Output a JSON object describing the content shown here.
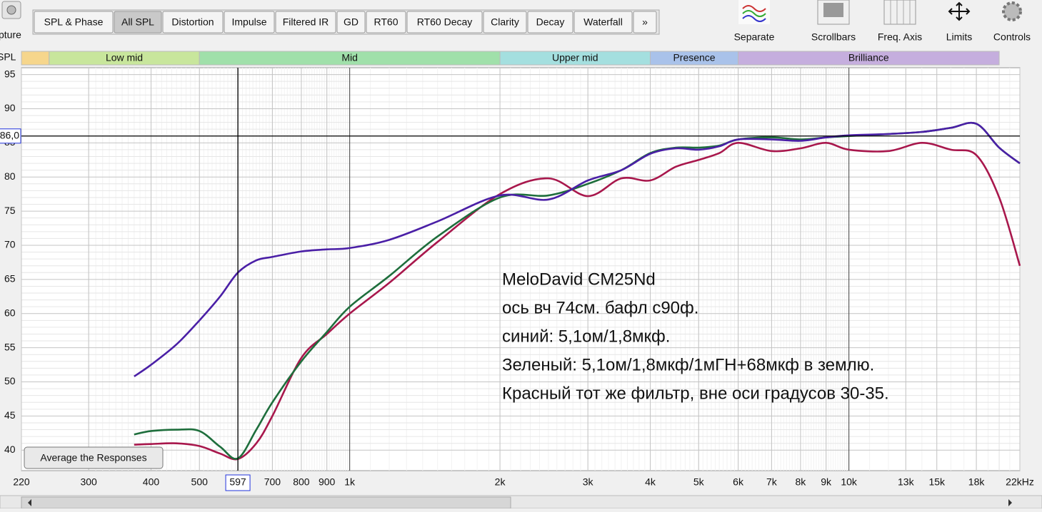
{
  "toolbar": {
    "capture_label": "pture",
    "tabs": [
      "SPL & Phase",
      "All SPL",
      "Distortion",
      "Impulse",
      "Filtered IR",
      "GD",
      "RT60",
      "RT60 Decay",
      "Clarity",
      "Decay",
      "Waterfall",
      "»"
    ],
    "active_tab": "All SPL",
    "tools": [
      "Separate",
      "Scrollbars",
      "Freq. Axis",
      "Limits",
      "Controls"
    ]
  },
  "button": "Average the Responses",
  "chart_data": {
    "type": "line",
    "y_label": "SPL",
    "x_log": true,
    "grid": true,
    "xlim": [
      220,
      22000
    ],
    "ylim": [
      37,
      96
    ],
    "xticks": [
      220,
      300,
      400,
      500,
      700,
      800,
      900,
      {
        "value": 1000,
        "label": "1k"
      },
      {
        "value": 2000,
        "label": "2k"
      },
      {
        "value": 3000,
        "label": "3k"
      },
      {
        "value": 4000,
        "label": "4k"
      },
      {
        "value": 5000,
        "label": "5k"
      },
      {
        "value": 6000,
        "label": "6k"
      },
      {
        "value": 7000,
        "label": "7k"
      },
      {
        "value": 8000,
        "label": "8k"
      },
      {
        "value": 9000,
        "label": "9k"
      },
      {
        "value": 10000,
        "label": "10k"
      },
      {
        "value": 13000,
        "label": "13k",
        "color": "#8a8a8a"
      },
      {
        "value": 15000,
        "label": "15k",
        "color": "#8a8a8a"
      },
      {
        "value": 18000,
        "label": "18k",
        "color": "#8a8a8a"
      },
      {
        "value": 22000,
        "label": "22kHz"
      }
    ],
    "yticks": [
      40,
      45,
      50,
      55,
      60,
      65,
      70,
      75,
      80,
      85,
      90,
      95
    ],
    "bands": [
      {
        "name": null,
        "from": 220,
        "to": 250,
        "color": "#f6d68c"
      },
      {
        "name": "Low mid",
        "from": 250,
        "to": 500,
        "color": "#c8e69c"
      },
      {
        "name": "Mid",
        "from": 500,
        "to": 2000,
        "color": "#a0e0aa"
      },
      {
        "name": "Upper mid",
        "from": 2000,
        "to": 4000,
        "color": "#a4dfdf"
      },
      {
        "name": "Presence",
        "from": 4000,
        "to": 6000,
        "color": "#a9c2ea"
      },
      {
        "name": "Brilliance",
        "from": 6000,
        "to": 20000,
        "color": "#c5aede"
      }
    ],
    "cursor": {
      "x": {
        "value": 597,
        "label": "597"
      },
      "y": {
        "value": 86,
        "label": "86,0"
      }
    },
    "annotation": [
      "MeloDavid CM25Nd",
      "ось вч 74см. бафл с90ф.",
      "синий: 5,1ом/1,8мкф.",
      "Зеленый: 5,1ом/1,8мкф/1мГН+68мкф в землю.",
      "Красный тот же фильтр, вне оси градусов 30-35."
    ],
    "x": [
      370,
      400,
      450,
      500,
      550,
      597,
      650,
      700,
      800,
      900,
      1000,
      1200,
      1500,
      2000,
      2500,
      3000,
      3500,
      4000,
      4500,
      5000,
      5500,
      6000,
      7000,
      8000,
      9000,
      10000,
      12000,
      14000,
      16000,
      18000,
      20000,
      22000
    ],
    "series": [
      {
        "color": "#a8174c",
        "values": [
          40.8,
          40.9,
          41,
          40.6,
          39.5,
          38.7,
          41,
          45,
          53.5,
          57,
          60,
          64.5,
          70.5,
          77.5,
          79.8,
          77.2,
          79.8,
          79.5,
          81.5,
          82.5,
          83.5,
          85,
          83.8,
          84.2,
          85,
          84,
          83.8,
          85,
          84,
          83.2,
          77,
          67
        ]
      },
      {
        "color": "#1e6e3c",
        "values": [
          42.3,
          42.8,
          43,
          42.8,
          40.5,
          38.8,
          43,
          47,
          53,
          57.3,
          61,
          65.5,
          71.3,
          77,
          77.3,
          79,
          81,
          83.5,
          84.3,
          84.3,
          84.6,
          85.5,
          85.8,
          85.5,
          85.8,
          86,
          86.3,
          86.6,
          87.2,
          87.8,
          84.3,
          82
        ]
      },
      {
        "color": "#4a1fa6",
        "values": [
          50.8,
          52.5,
          55.5,
          59,
          62.5,
          66,
          67.8,
          68.3,
          69.1,
          69.4,
          69.6,
          70.8,
          73.5,
          77.3,
          76.7,
          79.5,
          81,
          83.4,
          84.2,
          84,
          84.5,
          85.5,
          85.5,
          85.3,
          85.8,
          86.1,
          86.3,
          86.6,
          87.2,
          87.8,
          84.3,
          82
        ]
      }
    ]
  }
}
